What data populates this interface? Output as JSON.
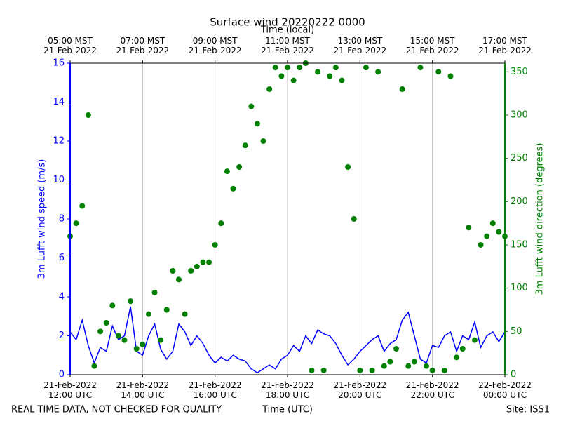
{
  "chart_data": {
    "type": "line",
    "title": "Surface wind 20220222 0000",
    "xlabel": "Time (UTC)",
    "x2label": "Time (local)",
    "ylabel": "3m Lufft wind speed (m/s)",
    "y2label": "3m Lufft wind direction (degrees)",
    "note_left": "REAL TIME DATA, NOT CHECKED FOR QUALITY",
    "note_right": "Site: ISS1",
    "xlim": [
      "2022-02-21T12:00",
      "2022-02-22T00:00"
    ],
    "xticks": [
      {
        "value": "2022-02-21T12:00",
        "label": "21-Feb-2022\n12:00 UTC"
      },
      {
        "value": "2022-02-21T14:00",
        "label": "21-Feb-2022\n14:00 UTC"
      },
      {
        "value": "2022-02-21T16:00",
        "label": "21-Feb-2022\n16:00 UTC"
      },
      {
        "value": "2022-02-21T18:00",
        "label": "21-Feb-2022\n18:00 UTC"
      },
      {
        "value": "2022-02-21T20:00",
        "label": "21-Feb-2022\n20:00 UTC"
      },
      {
        "value": "2022-02-21T22:00",
        "label": "21-Feb-2022\n22:00 UTC"
      },
      {
        "value": "2022-02-22T00:00",
        "label": "22-Feb-2022\n00:00 UTC"
      }
    ],
    "x2ticks": [
      {
        "value": "2022-02-21T12:00",
        "label": "05:00 MST\n21-Feb-2022"
      },
      {
        "value": "2022-02-21T14:00",
        "label": "07:00 MST\n21-Feb-2022"
      },
      {
        "value": "2022-02-21T16:00",
        "label": "09:00 MST\n21-Feb-2022"
      },
      {
        "value": "2022-02-21T18:00",
        "label": "11:00 MST\n21-Feb-2022"
      },
      {
        "value": "2022-02-21T20:00",
        "label": "13:00 MST\n21-Feb-2022"
      },
      {
        "value": "2022-02-21T22:00",
        "label": "15:00 MST\n21-Feb-2022"
      },
      {
        "value": "2022-02-22T00:00",
        "label": "17:00 MST\n21-Feb-2022"
      }
    ],
    "ylim": [
      0,
      16
    ],
    "yticks": [
      0,
      2,
      4,
      6,
      8,
      10,
      12,
      14,
      16
    ],
    "y2lim": [
      0,
      360
    ],
    "y2ticks": [
      0,
      50,
      100,
      150,
      200,
      250,
      300,
      350
    ],
    "grid": "x",
    "x": [
      "2022-02-21T12:00",
      "2022-02-21T12:10",
      "2022-02-21T12:20",
      "2022-02-21T12:30",
      "2022-02-21T12:40",
      "2022-02-21T12:50",
      "2022-02-21T13:00",
      "2022-02-21T13:10",
      "2022-02-21T13:20",
      "2022-02-21T13:30",
      "2022-02-21T13:40",
      "2022-02-21T13:50",
      "2022-02-21T14:00",
      "2022-02-21T14:10",
      "2022-02-21T14:20",
      "2022-02-21T14:30",
      "2022-02-21T14:40",
      "2022-02-21T14:50",
      "2022-02-21T15:00",
      "2022-02-21T15:10",
      "2022-02-21T15:20",
      "2022-02-21T15:30",
      "2022-02-21T15:40",
      "2022-02-21T15:50",
      "2022-02-21T16:00",
      "2022-02-21T16:10",
      "2022-02-21T16:20",
      "2022-02-21T16:30",
      "2022-02-21T16:40",
      "2022-02-21T16:50",
      "2022-02-21T17:00",
      "2022-02-21T17:10",
      "2022-02-21T17:20",
      "2022-02-21T17:30",
      "2022-02-21T17:40",
      "2022-02-21T17:50",
      "2022-02-21T18:00",
      "2022-02-21T18:10",
      "2022-02-21T18:20",
      "2022-02-21T18:30",
      "2022-02-21T18:40",
      "2022-02-21T18:50",
      "2022-02-21T19:00",
      "2022-02-21T19:10",
      "2022-02-21T19:20",
      "2022-02-21T19:30",
      "2022-02-21T19:40",
      "2022-02-21T19:50",
      "2022-02-21T20:00",
      "2022-02-21T20:10",
      "2022-02-21T20:20",
      "2022-02-21T20:30",
      "2022-02-21T20:40",
      "2022-02-21T20:50",
      "2022-02-21T21:00",
      "2022-02-21T21:10",
      "2022-02-21T21:20",
      "2022-02-21T21:30",
      "2022-02-21T21:40",
      "2022-02-21T21:50",
      "2022-02-21T22:00",
      "2022-02-21T22:10",
      "2022-02-21T22:20",
      "2022-02-21T22:30",
      "2022-02-21T22:40",
      "2022-02-21T22:50",
      "2022-02-21T23:00",
      "2022-02-21T23:10",
      "2022-02-21T23:20",
      "2022-02-21T23:30",
      "2022-02-21T23:40",
      "2022-02-21T23:50",
      "2022-02-22T00:00"
    ],
    "series": [
      {
        "style": "line",
        "axis": "y",
        "color": "#0000ff",
        "values": [
          2.2,
          1.8,
          2.8,
          1.5,
          0.6,
          1.4,
          1.2,
          2.5,
          1.8,
          2.0,
          3.5,
          1.2,
          1.0,
          2.0,
          2.6,
          1.3,
          0.8,
          1.2,
          2.6,
          2.2,
          1.5,
          2.0,
          1.6,
          1.0,
          0.6,
          0.9,
          0.7,
          1.0,
          0.8,
          0.7,
          0.3,
          0.1,
          0.3,
          0.5,
          0.3,
          0.8,
          1.0,
          1.5,
          1.2,
          2.0,
          1.6,
          2.3,
          2.1,
          2.0,
          1.6,
          1.0,
          0.5,
          0.8,
          1.2,
          1.5,
          1.8,
          2.0,
          1.2,
          1.6,
          1.8,
          2.8,
          3.2,
          2.0,
          0.8,
          0.6,
          1.5,
          1.4,
          2.0,
          2.2,
          1.2,
          2.0,
          1.8,
          2.7,
          1.4,
          2.0,
          2.2,
          1.7,
          2.2
        ]
      },
      {
        "style": "points",
        "axis": "y2",
        "color": "#008000",
        "values": [
          160,
          175,
          195,
          300,
          10,
          50,
          60,
          80,
          45,
          40,
          85,
          30,
          35,
          70,
          95,
          40,
          75,
          120,
          110,
          70,
          120,
          125,
          130,
          130,
          150,
          175,
          235,
          215,
          240,
          265,
          310,
          290,
          270,
          330,
          355,
          345,
          355,
          340,
          355,
          360,
          5,
          350,
          5,
          345,
          355,
          340,
          240,
          180,
          5,
          355,
          5,
          350,
          10,
          15,
          30,
          330,
          10,
          15,
          355,
          10,
          5,
          350,
          5,
          345,
          20,
          30,
          170,
          40,
          150,
          160,
          175,
          165,
          160
        ]
      }
    ]
  }
}
